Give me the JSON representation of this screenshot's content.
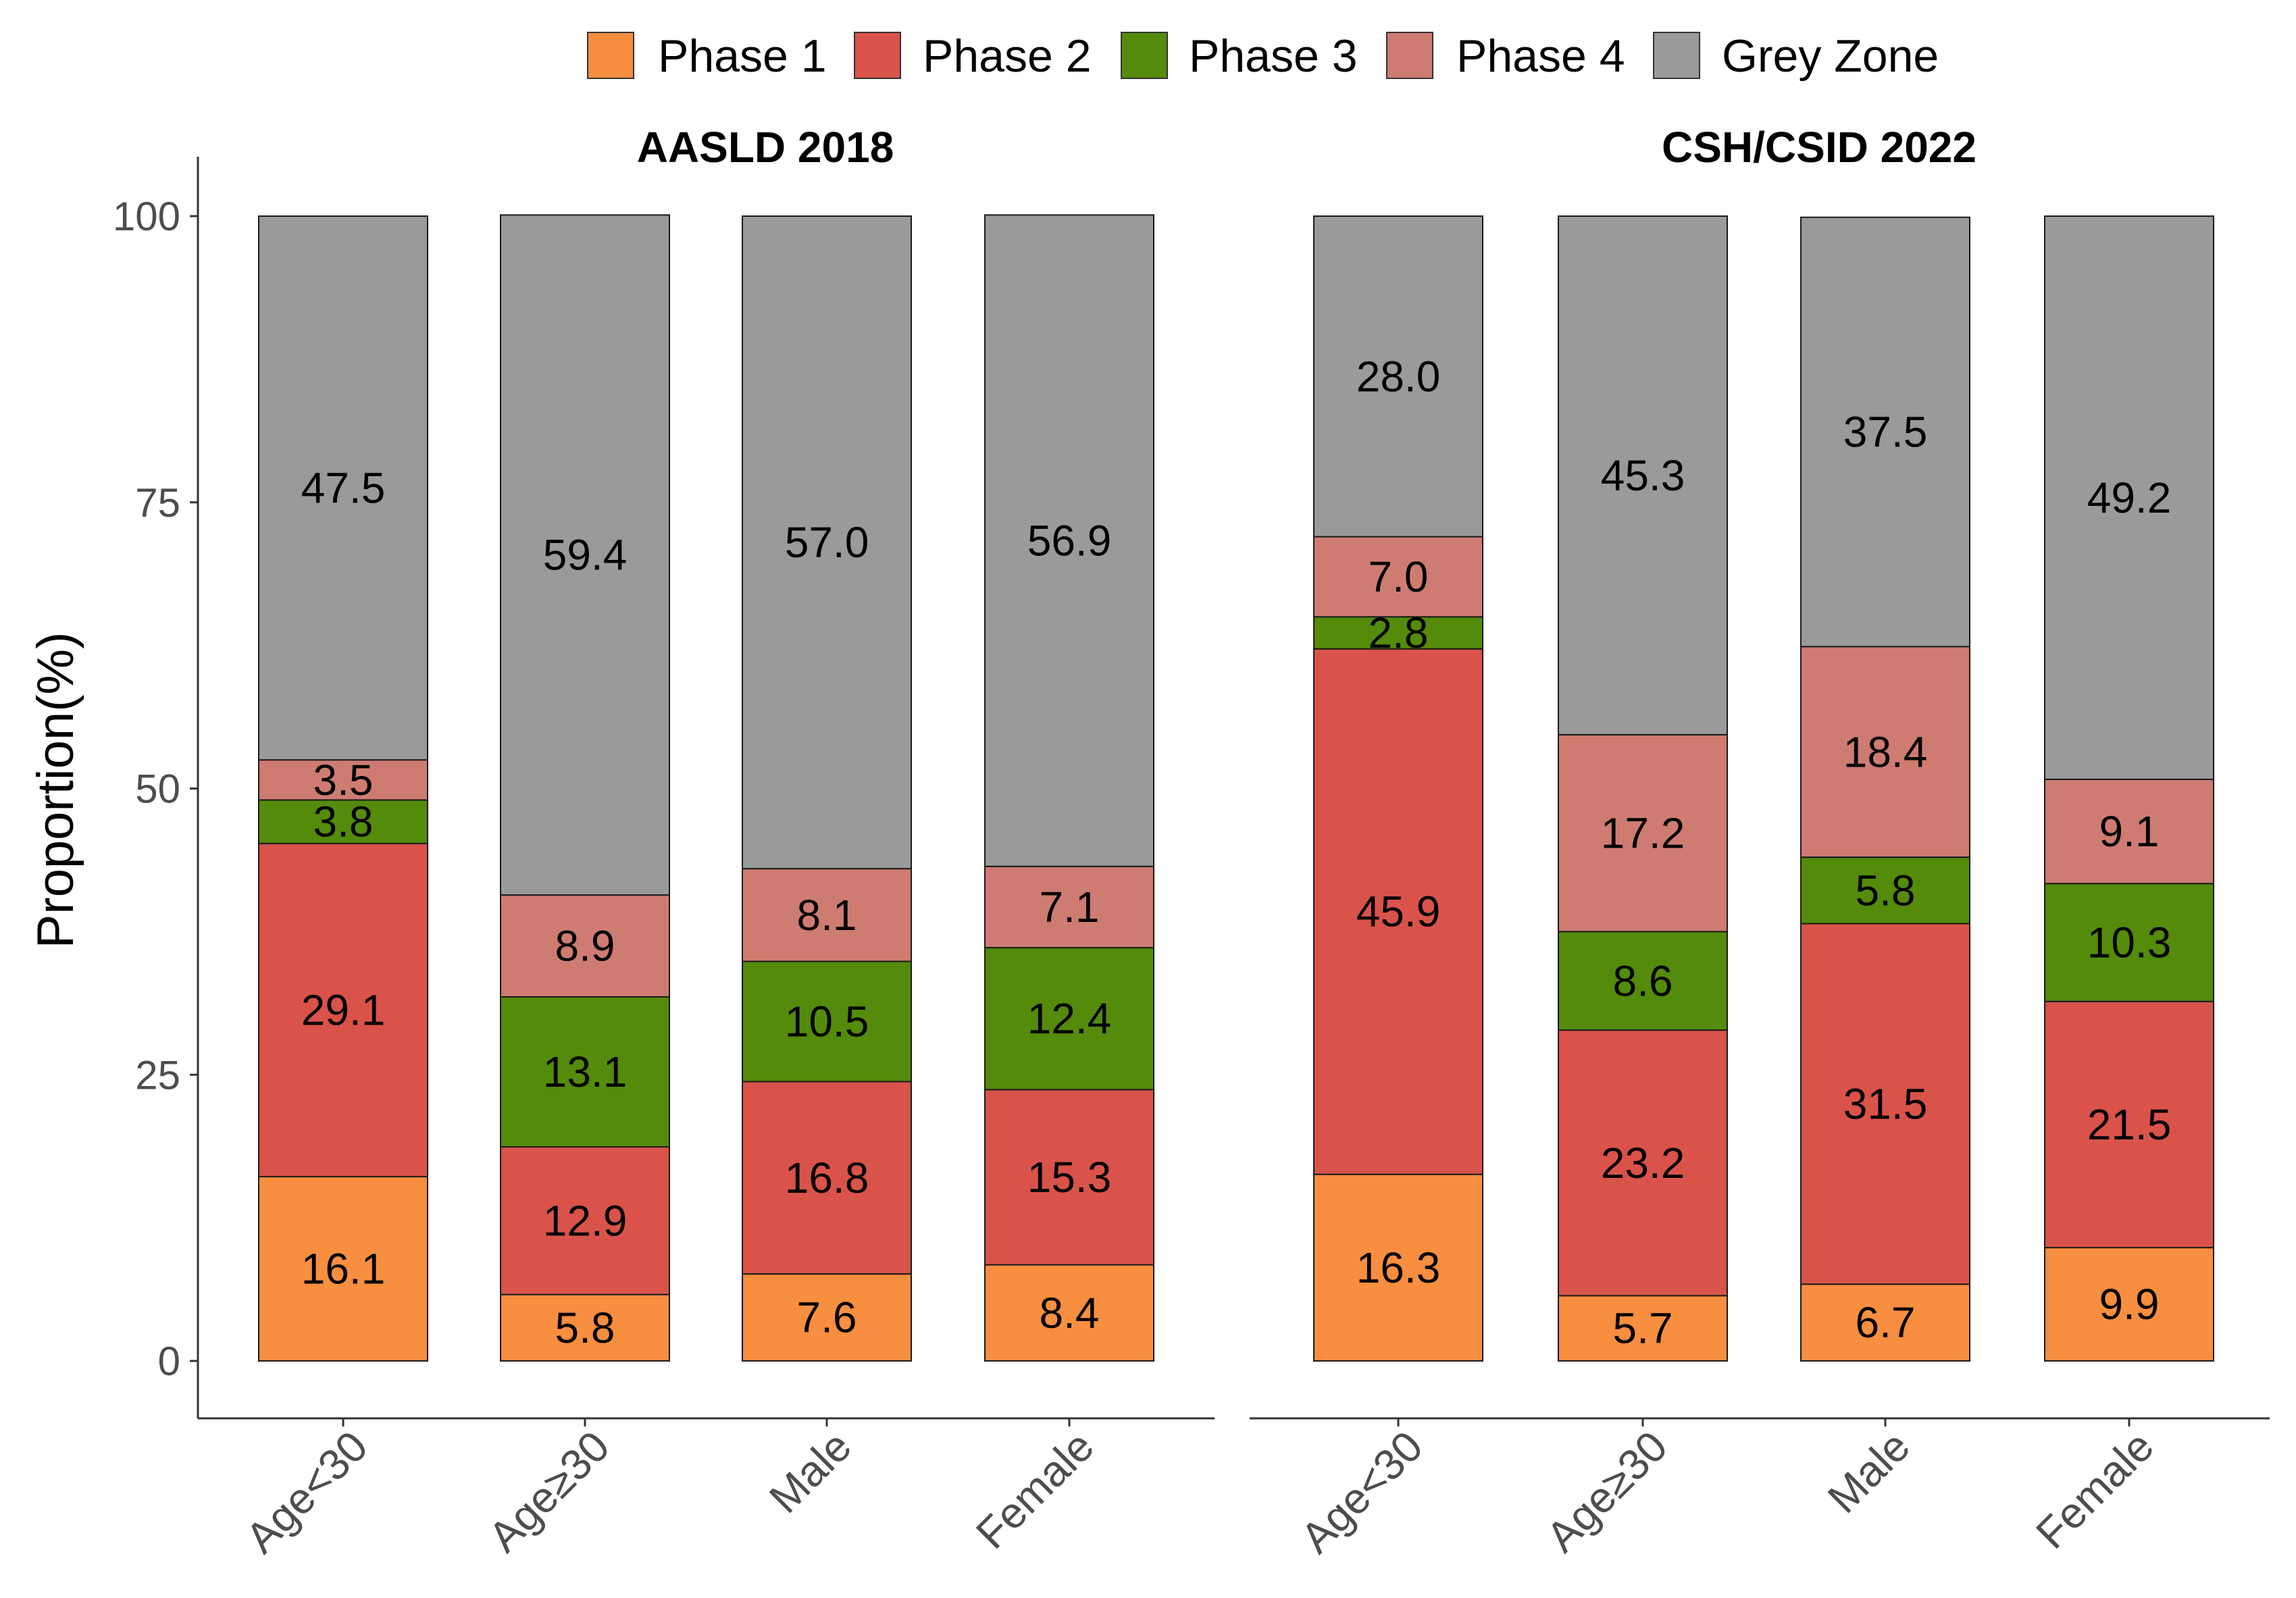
{
  "chart_data": {
    "type": "bar",
    "stacked": true,
    "ylabel": "Proportion(%)",
    "ylim": [
      0,
      100
    ],
    "yticks": [
      "0",
      "25",
      "50",
      "75",
      "100"
    ],
    "grid": false,
    "legend": {
      "placement": "top",
      "entries": [
        "Phase 1",
        "Phase 2",
        "Phase 3",
        "Phase 4",
        "Grey Zone"
      ],
      "colors": [
        "#F88E3F",
        "#D9534A",
        "#548B0B",
        "#CE7C72",
        "#9A9A9A"
      ]
    },
    "panels": [
      {
        "title": "AASLD 2018",
        "categories": [
          "Age<30",
          "Age≥30",
          "Male",
          "Female"
        ],
        "series": [
          {
            "name": "Phase 1",
            "values": [
              16.1,
              5.8,
              7.6,
              8.4
            ],
            "labels": [
              "16.1",
              "5.8",
              "7.6",
              "8.4"
            ]
          },
          {
            "name": "Phase 2",
            "values": [
              29.1,
              12.9,
              16.8,
              15.3
            ],
            "labels": [
              "29.1",
              "12.9",
              "16.8",
              "15.3"
            ]
          },
          {
            "name": "Phase 3",
            "values": [
              3.8,
              13.1,
              10.5,
              12.4
            ],
            "labels": [
              "3.8",
              "13.1",
              "10.5",
              "12.4"
            ]
          },
          {
            "name": "Phase 4",
            "values": [
              3.5,
              8.9,
              8.1,
              7.1
            ],
            "labels": [
              "3.5",
              "8.9",
              "8.1",
              "7.1"
            ]
          },
          {
            "name": "Grey Zone",
            "values": [
              47.5,
              59.4,
              57.0,
              56.9
            ],
            "labels": [
              "47.5",
              "59.4",
              "57.0",
              "56.9"
            ]
          }
        ]
      },
      {
        "title": "CSH/CSID 2022",
        "categories": [
          "Age<30",
          "Age≥30",
          "Male",
          "Female"
        ],
        "series": [
          {
            "name": "Phase 1",
            "values": [
              16.3,
              5.7,
              6.7,
              9.9
            ],
            "labels": [
              "16.3",
              "5.7",
              "6.7",
              "9.9"
            ]
          },
          {
            "name": "Phase 2",
            "values": [
              45.9,
              23.2,
              31.5,
              21.5
            ],
            "labels": [
              "45.9",
              "23.2",
              "31.5",
              "21.5"
            ]
          },
          {
            "name": "Phase 3",
            "values": [
              2.8,
              8.6,
              5.8,
              10.3
            ],
            "labels": [
              "2.8",
              "8.6",
              "5.8",
              "10.3"
            ]
          },
          {
            "name": "Phase 4",
            "values": [
              7.0,
              17.2,
              18.4,
              9.1
            ],
            "labels": [
              "7.0",
              "17.2",
              "18.4",
              "9.1"
            ]
          },
          {
            "name": "Grey Zone",
            "values": [
              28.0,
              45.3,
              37.5,
              49.2
            ],
            "labels": [
              "28.0",
              "45.3",
              "37.5",
              "49.2"
            ]
          }
        ]
      }
    ]
  }
}
